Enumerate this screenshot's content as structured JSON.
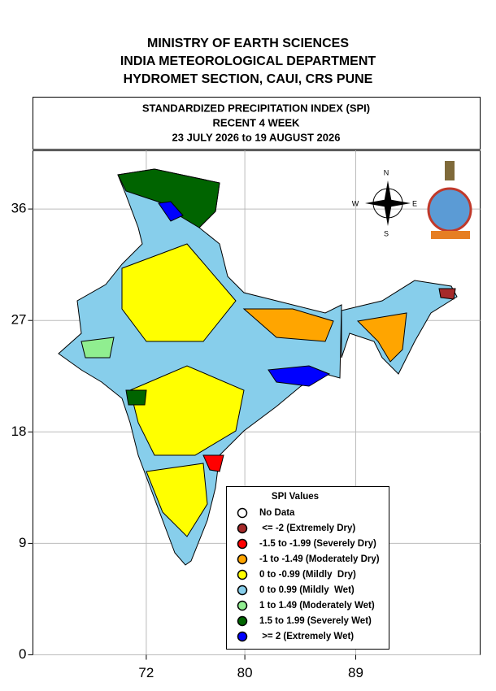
{
  "header": {
    "lines": [
      "MINISTRY OF EARTH SCIENCES",
      "INDIA METEOROLOGICAL DEPARTMENT",
      "HYDROMET SECTION, CAUI, CRS PUNE"
    ]
  },
  "title_box": {
    "lines": [
      "STANDARDIZED PRECIPITATION INDEX (SPI)",
      "RECENT 4 WEEK",
      "23 JULY 2026 to 19 AUGUST 2026"
    ]
  },
  "map": {
    "xlim": [
      62.8,
      99.1
    ],
    "ylim": [
      0,
      40.7
    ],
    "xticks": [
      72,
      80,
      89
    ],
    "yticks": [
      0,
      9,
      18,
      27,
      36
    ]
  },
  "compass": {
    "n": "N",
    "e": "E",
    "s": "S",
    "w": "W"
  },
  "legend": {
    "title": "SPI Values",
    "items": [
      {
        "label": "No Data",
        "color": "#ffffff"
      },
      {
        "label": " <= -2 (Extremely Dry)",
        "color": "#a52a2a"
      },
      {
        "label": "-1.5 to -1.99 (Severely Dry)",
        "color": "#ff0000"
      },
      {
        "label": "-1 to -1.49 (Moderately Dry)",
        "color": "#ffa500"
      },
      {
        "label": "0 to -0.99 (Mildly  Dry)",
        "color": "#ffff00"
      },
      {
        "label": "0 to 0.99 (Mildly  Wet)",
        "color": "#87ceeb"
      },
      {
        "label": "1 to 1.49 (Moderately Wet)",
        "color": "#90ee90"
      },
      {
        "label": "1.5 to 1.99 (Severely Wet)",
        "color": "#006400"
      },
      {
        "label": " >= 2 (Extremely Wet)",
        "color": "#0000ff"
      }
    ]
  }
}
